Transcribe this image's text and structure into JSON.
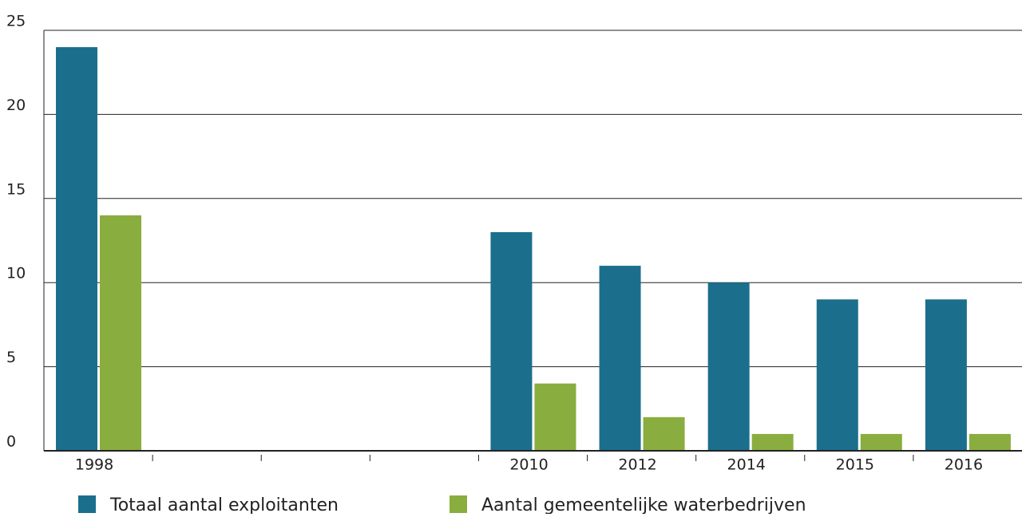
{
  "chart_data": {
    "type": "bar",
    "categories": [
      "1998",
      null,
      null,
      null,
      "2010",
      "2012",
      "2014",
      "2015",
      "2016"
    ],
    "series": [
      {
        "name": "Totaal aantal exploitanten",
        "color": "#1b6f8c",
        "values": [
          24,
          null,
          null,
          null,
          13,
          11,
          10,
          9,
          9
        ]
      },
      {
        "name": "Aantal gemeentelijke waterbedrijven",
        "color": "#8aad3f",
        "values": [
          14,
          null,
          null,
          null,
          4,
          2,
          1,
          1,
          1
        ]
      }
    ],
    "ylim": [
      0,
      25
    ],
    "yticks": [
      0,
      5,
      10,
      15,
      20,
      25
    ],
    "grid": true,
    "legend": "bottom"
  }
}
